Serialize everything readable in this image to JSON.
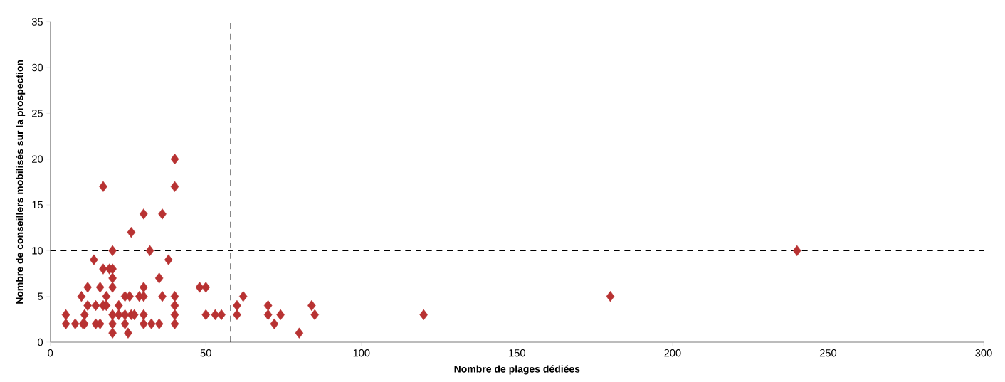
{
  "chart_data": {
    "type": "scatter",
    "xlabel": "Nombre de plages dédiées",
    "ylabel": "Nombre de conseillers mobilisés sur la prospection",
    "x": [
      5,
      8,
      10.5,
      11,
      14.6,
      16,
      20,
      24,
      30,
      32.5,
      35,
      40,
      20,
      25,
      5,
      11,
      20,
      22,
      24,
      26,
      27,
      30,
      40,
      12,
      14.6,
      17,
      18,
      22,
      40,
      10,
      18,
      24,
      25.5,
      28.6,
      30,
      36,
      40,
      12,
      16,
      20,
      30,
      20,
      35,
      17,
      19,
      20,
      14,
      38,
      20,
      32,
      26,
      30,
      36,
      17,
      40,
      40,
      48,
      50,
      62,
      60,
      70,
      84,
      50,
      53,
      55,
      60,
      70,
      74,
      85,
      72,
      80,
      120,
      180,
      240
    ],
    "values": [
      2,
      2,
      2,
      2,
      2,
      2,
      2,
      2,
      2,
      2,
      2,
      2,
      1,
      1,
      3,
      3,
      3,
      3,
      3,
      3,
      3,
      3,
      3,
      4,
      4,
      4,
      4,
      4,
      4,
      5,
      5,
      5,
      5,
      5,
      5,
      5,
      5,
      6,
      6,
      6,
      6,
      7,
      7,
      8,
      8,
      8,
      9,
      9,
      10,
      10,
      12,
      14,
      14,
      17,
      17,
      20,
      6,
      6,
      5,
      4,
      4,
      4,
      3,
      3,
      3,
      3,
      3,
      3,
      3,
      2,
      1,
      3,
      5,
      10
    ],
    "color": "#b83232",
    "marker": "diamond",
    "xlim": [
      0,
      300
    ],
    "xticks": [
      0,
      50,
      100,
      150,
      200,
      250,
      300
    ],
    "ylim": [
      0,
      35
    ],
    "yticks": [
      0,
      5,
      10,
      15,
      20,
      25,
      30,
      35
    ],
    "ref_lines": [
      {
        "axis": "x",
        "value": 58,
        "color": "#000000",
        "line_style": "dashed"
      },
      {
        "axis": "y",
        "value": 10,
        "color": "#000000",
        "line_style": "dashed"
      }
    ],
    "grid": false
  }
}
